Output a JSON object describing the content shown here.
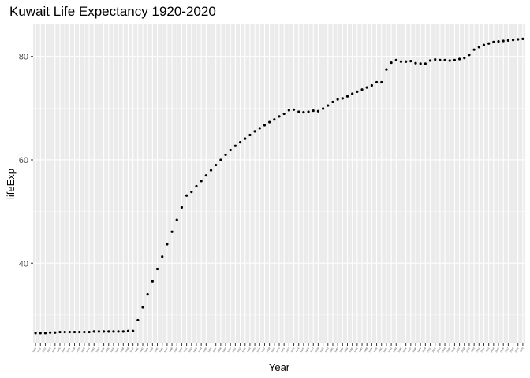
{
  "chart_data": {
    "type": "scatter",
    "title": "Kuwait Life Expectancy 1920-2020",
    "xlabel": "Year",
    "ylabel": "lifeExp",
    "x_start": 1920,
    "x_end": 2020,
    "ylim": [
      24.5,
      86.2
    ],
    "yticks": [
      40,
      60,
      80
    ],
    "grid": true,
    "colors": {
      "panel": "#ebebeb",
      "grid": "#ffffff",
      "point": "#000000"
    },
    "points": [
      {
        "x": 1920,
        "y": 26.5
      },
      {
        "x": 1921,
        "y": 26.5
      },
      {
        "x": 1922,
        "y": 26.5
      },
      {
        "x": 1923,
        "y": 26.6
      },
      {
        "x": 1924,
        "y": 26.6
      },
      {
        "x": 1925,
        "y": 26.7
      },
      {
        "x": 1926,
        "y": 26.7
      },
      {
        "x": 1927,
        "y": 26.7
      },
      {
        "x": 1928,
        "y": 26.7
      },
      {
        "x": 1929,
        "y": 26.7
      },
      {
        "x": 1930,
        "y": 26.7
      },
      {
        "x": 1931,
        "y": 26.7
      },
      {
        "x": 1932,
        "y": 26.8
      },
      {
        "x": 1933,
        "y": 26.8
      },
      {
        "x": 1934,
        "y": 26.8
      },
      {
        "x": 1935,
        "y": 26.8
      },
      {
        "x": 1936,
        "y": 26.8
      },
      {
        "x": 1937,
        "y": 26.8
      },
      {
        "x": 1938,
        "y": 26.8
      },
      {
        "x": 1939,
        "y": 26.9
      },
      {
        "x": 1940,
        "y": 26.9
      },
      {
        "x": 1941,
        "y": 29.0
      },
      {
        "x": 1942,
        "y": 31.5
      },
      {
        "x": 1943,
        "y": 34.0
      },
      {
        "x": 1944,
        "y": 36.5
      },
      {
        "x": 1945,
        "y": 38.9
      },
      {
        "x": 1946,
        "y": 41.3
      },
      {
        "x": 1947,
        "y": 43.7
      },
      {
        "x": 1948,
        "y": 46.1
      },
      {
        "x": 1949,
        "y": 48.4
      },
      {
        "x": 1950,
        "y": 50.8
      },
      {
        "x": 1951,
        "y": 53.1
      },
      {
        "x": 1952,
        "y": 53.8
      },
      {
        "x": 1953,
        "y": 54.9
      },
      {
        "x": 1954,
        "y": 55.9
      },
      {
        "x": 1955,
        "y": 57.0
      },
      {
        "x": 1956,
        "y": 58.0
      },
      {
        "x": 1957,
        "y": 59.0
      },
      {
        "x": 1958,
        "y": 60.0
      },
      {
        "x": 1959,
        "y": 61.0
      },
      {
        "x": 1960,
        "y": 61.9
      },
      {
        "x": 1961,
        "y": 62.7
      },
      {
        "x": 1962,
        "y": 63.4
      },
      {
        "x": 1963,
        "y": 64.1
      },
      {
        "x": 1964,
        "y": 64.8
      },
      {
        "x": 1965,
        "y": 65.5
      },
      {
        "x": 1966,
        "y": 66.1
      },
      {
        "x": 1967,
        "y": 66.7
      },
      {
        "x": 1968,
        "y": 67.3
      },
      {
        "x": 1969,
        "y": 67.8
      },
      {
        "x": 1970,
        "y": 68.4
      },
      {
        "x": 1971,
        "y": 68.9
      },
      {
        "x": 1972,
        "y": 69.6
      },
      {
        "x": 1973,
        "y": 69.7
      },
      {
        "x": 1974,
        "y": 69.3
      },
      {
        "x": 1975,
        "y": 69.2
      },
      {
        "x": 1976,
        "y": 69.3
      },
      {
        "x": 1977,
        "y": 69.5
      },
      {
        "x": 1978,
        "y": 69.4
      },
      {
        "x": 1979,
        "y": 69.9
      },
      {
        "x": 1980,
        "y": 70.5
      },
      {
        "x": 1981,
        "y": 71.2
      },
      {
        "x": 1982,
        "y": 71.7
      },
      {
        "x": 1983,
        "y": 71.9
      },
      {
        "x": 1984,
        "y": 72.3
      },
      {
        "x": 1985,
        "y": 72.8
      },
      {
        "x": 1986,
        "y": 73.2
      },
      {
        "x": 1987,
        "y": 73.6
      },
      {
        "x": 1988,
        "y": 74.0
      },
      {
        "x": 1989,
        "y": 74.4
      },
      {
        "x": 1990,
        "y": 75.0
      },
      {
        "x": 1991,
        "y": 75.0
      },
      {
        "x": 1992,
        "y": 77.5
      },
      {
        "x": 1993,
        "y": 78.8
      },
      {
        "x": 1994,
        "y": 79.3
      },
      {
        "x": 1995,
        "y": 79.0
      },
      {
        "x": 1996,
        "y": 79.0
      },
      {
        "x": 1997,
        "y": 79.1
      },
      {
        "x": 1998,
        "y": 78.7
      },
      {
        "x": 1999,
        "y": 78.6
      },
      {
        "x": 2000,
        "y": 78.6
      },
      {
        "x": 2001,
        "y": 79.2
      },
      {
        "x": 2002,
        "y": 79.4
      },
      {
        "x": 2003,
        "y": 79.3
      },
      {
        "x": 2004,
        "y": 79.3
      },
      {
        "x": 2005,
        "y": 79.2
      },
      {
        "x": 2006,
        "y": 79.3
      },
      {
        "x": 2007,
        "y": 79.5
      },
      {
        "x": 2008,
        "y": 79.7
      },
      {
        "x": 2009,
        "y": 80.3
      },
      {
        "x": 2010,
        "y": 81.3
      },
      {
        "x": 2011,
        "y": 81.8
      },
      {
        "x": 2012,
        "y": 82.2
      },
      {
        "x": 2013,
        "y": 82.5
      },
      {
        "x": 2014,
        "y": 82.8
      },
      {
        "x": 2015,
        "y": 82.9
      },
      {
        "x": 2016,
        "y": 83.0
      },
      {
        "x": 2017,
        "y": 83.1
      },
      {
        "x": 2018,
        "y": 83.2
      },
      {
        "x": 2019,
        "y": 83.3
      },
      {
        "x": 2020,
        "y": 83.4
      }
    ]
  }
}
